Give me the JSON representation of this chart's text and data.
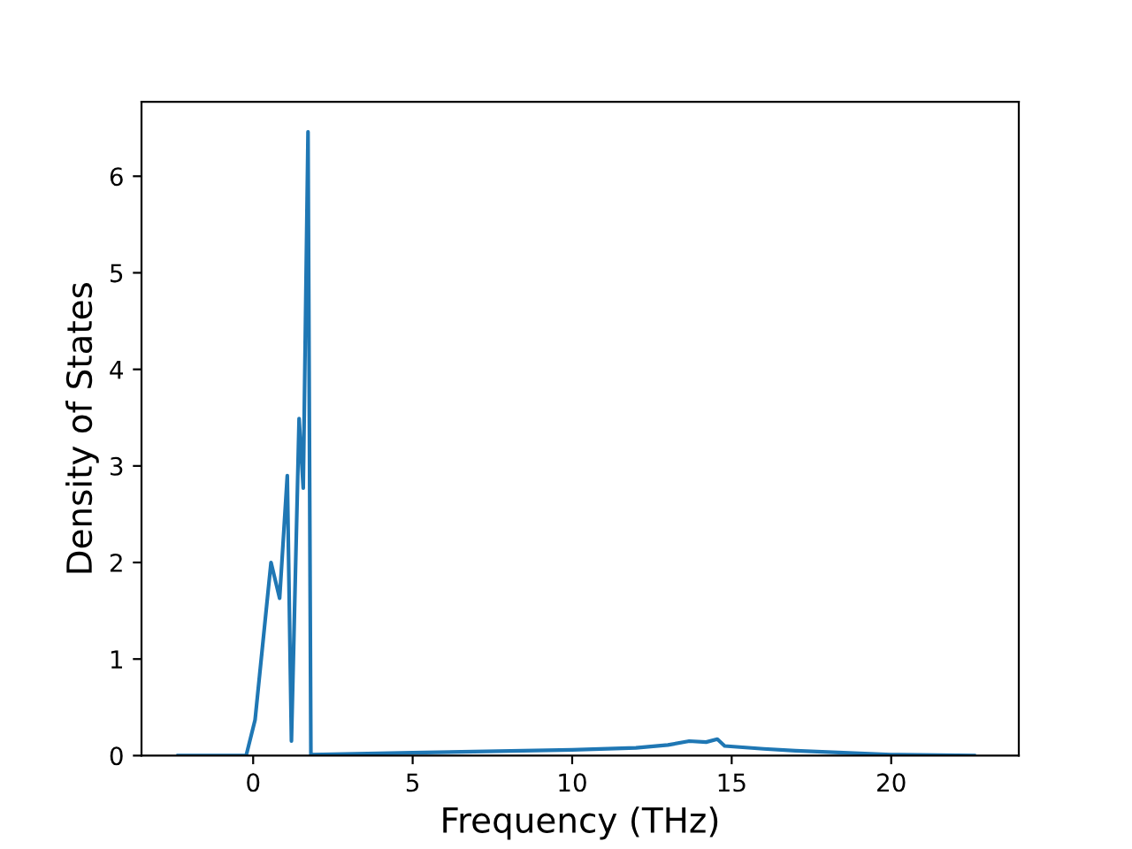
{
  "chart_data": {
    "type": "line",
    "xlabel": "Frequency (THz)",
    "ylabel": "Density of States",
    "series": [
      {
        "color": "#1f77b4",
        "x": [
          -2.35,
          -0.22,
          0.06,
          0.56,
          0.83,
          1.07,
          1.2,
          1.44,
          1.57,
          1.72,
          1.81,
          1.82,
          5,
          10,
          12,
          13,
          13.67,
          14.2,
          14.55,
          14.78,
          16,
          17,
          20,
          22.6
        ],
        "values": [
          0,
          0,
          0.37,
          2.0,
          1.63,
          2.9,
          0.15,
          3.49,
          2.77,
          6.46,
          0,
          0.01,
          0.03,
          0.06,
          0.08,
          0.11,
          0.15,
          0.14,
          0.17,
          0.1,
          0.07,
          0.05,
          0.01,
          0
        ]
      }
    ],
    "xlim": [
      -3.5,
      24.0
    ],
    "ylim": [
      0,
      6.77
    ],
    "xticks": [
      0,
      5,
      10,
      15,
      20
    ],
    "yticks": [
      0,
      1,
      2,
      3,
      4,
      5,
      6
    ],
    "grid": false,
    "legend": false
  }
}
